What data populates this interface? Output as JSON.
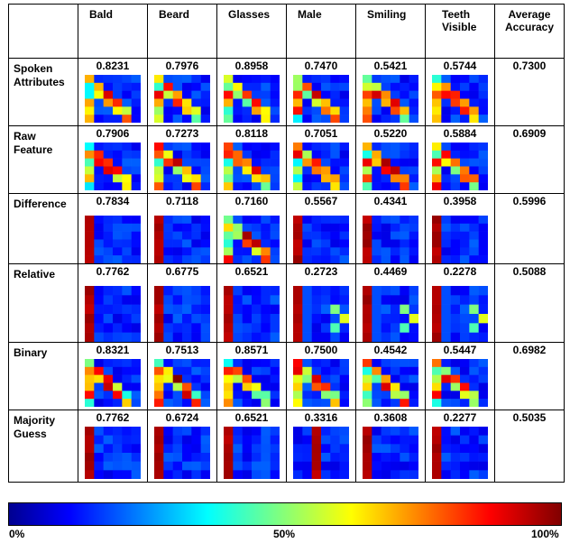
{
  "columns": [
    "Bald",
    "Beard",
    "Glasses",
    "Male",
    "Smiling",
    "Teeth Visible",
    "Average Accuracy"
  ],
  "rows": [
    {
      "label": "Spoken Attributes",
      "values": [
        "0.8231",
        "0.7976",
        "0.8958",
        "0.7470",
        "0.5421",
        "0.5744",
        "0.7300"
      ]
    },
    {
      "label": "Raw Feature",
      "values": [
        "0.7906",
        "0.7273",
        "0.8118",
        "0.7051",
        "0.5220",
        "0.5884",
        "0.6909"
      ]
    },
    {
      "label": "Difference",
      "values": [
        "0.7834",
        "0.7118",
        "0.7160",
        "0.5567",
        "0.4341",
        "0.3958",
        "0.5996"
      ]
    },
    {
      "label": "Relative",
      "values": [
        "0.7762",
        "0.6775",
        "0.6521",
        "0.2723",
        "0.4469",
        "0.2278",
        "0.5088"
      ]
    },
    {
      "label": "Binary",
      "values": [
        "0.8321",
        "0.7513",
        "0.8571",
        "0.7500",
        "0.4542",
        "0.5447",
        "0.6982"
      ]
    },
    {
      "label": "Majority Guess",
      "values": [
        "0.7762",
        "0.6724",
        "0.6521",
        "0.3316",
        "0.3608",
        "0.2277",
        "0.5035"
      ]
    }
  ],
  "colorbar": {
    "min_label": "0%",
    "mid_label": "50%",
    "max_label": "100%"
  }
}
